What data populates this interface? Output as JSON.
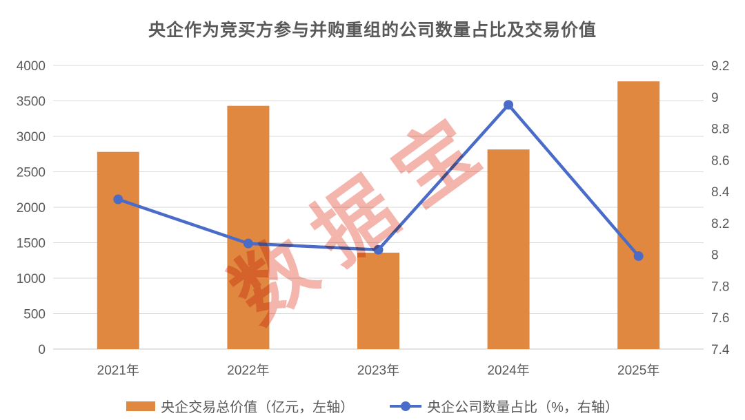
{
  "title": "央企作为竞买方参与并购重组的公司数量占比及交易价值",
  "watermark": "数据宝",
  "colors": {
    "bar": "#E08840",
    "line": "#4A6CC8",
    "title_text": "#595959",
    "axis_text": "#595959",
    "gridline": "#D9D9D9",
    "axis_line": "#C6C6C6",
    "watermark": "#E7705F",
    "background": "#FFFFFF"
  },
  "chart_data": {
    "type": "combo-bar-line",
    "categories": [
      "2021年",
      "2022年",
      "2023年",
      "2024年",
      "2025年"
    ],
    "series": [
      {
        "name": "央企交易总价值（亿元，左轴）",
        "type": "bar",
        "axis": "left",
        "values": [
          2780,
          3430,
          1360,
          2815,
          3775
        ]
      },
      {
        "name": "央企公司数量占比（%，右轴）",
        "type": "line",
        "axis": "right",
        "values": [
          8.35,
          8.07,
          8.03,
          8.95,
          7.99
        ]
      }
    ],
    "left_axis": {
      "min": 0,
      "max": 4000,
      "ticks": [
        "0",
        "500",
        "1000",
        "1500",
        "2000",
        "2500",
        "3000",
        "3500",
        "4000"
      ]
    },
    "right_axis": {
      "min": 7.4,
      "max": 9.2,
      "ticks": [
        "7.4",
        "7.6",
        "7.8",
        "8",
        "8.2",
        "8.4",
        "8.6",
        "8.8",
        "9",
        "9.2"
      ]
    },
    "grid": true,
    "legend_position": "bottom"
  },
  "legend": {
    "items": [
      {
        "label": "央企交易总价值（亿元，左轴）",
        "swatch": "bar"
      },
      {
        "label": "央企公司数量占比（%，右轴）",
        "swatch": "line-marker"
      }
    ]
  }
}
